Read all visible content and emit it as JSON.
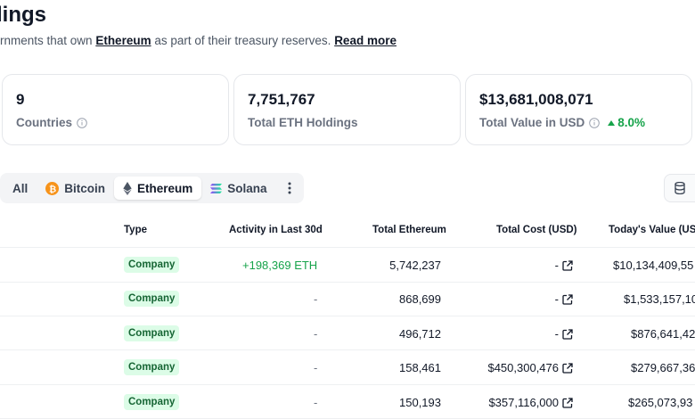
{
  "header": {
    "title": "lings",
    "subtitle_prefix": "rnments that own ",
    "subtitle_link": "Ethereum",
    "subtitle_middle": " as part of their treasury reserves. ",
    "read_more": "Read more"
  },
  "stats": [
    {
      "value": "9",
      "label": "Countries"
    },
    {
      "value": "7,751,767",
      "label": "Total ETH Holdings"
    },
    {
      "value": "$13,681,008,071",
      "label": "Total Value in USD",
      "change": "8.0%"
    }
  ],
  "tabs": [
    {
      "label": "All",
      "active": false
    },
    {
      "label": "Bitcoin",
      "active": false,
      "icon": "bitcoin-icon"
    },
    {
      "label": "Ethereum",
      "active": true,
      "icon": "ethereum-icon"
    },
    {
      "label": "Solana",
      "active": false,
      "icon": "solana-icon"
    }
  ],
  "table": {
    "columns": {
      "type": "Type",
      "activity": "Activity in Last 30d",
      "total": "Total Ethereum",
      "cost": "Total Cost (USD)",
      "value": "Today's Value (USD"
    },
    "rows": [
      {
        "type": "Company",
        "activity": "+198,369 ETH",
        "total": "5,742,237",
        "cost": "-",
        "value": "$10,134,409,55"
      },
      {
        "type": "Company",
        "activity": "-",
        "total": "868,699",
        "cost": "-",
        "value": "$1,533,157,10"
      },
      {
        "type": "Company",
        "activity": "-",
        "total": "496,712",
        "cost": "-",
        "value": "$876,641,42"
      },
      {
        "type": "Company",
        "activity": "-",
        "total": "158,461",
        "cost": "$450,300,476",
        "value": "$279,667,36"
      },
      {
        "type": "Company",
        "activity": "-",
        "total": "150,193",
        "cost": "$357,116,000",
        "value": "$265,073,93"
      }
    ]
  },
  "colors": {
    "positive": "#16a34a",
    "badge_bg": "#dcfce7",
    "badge_text": "#166534"
  }
}
